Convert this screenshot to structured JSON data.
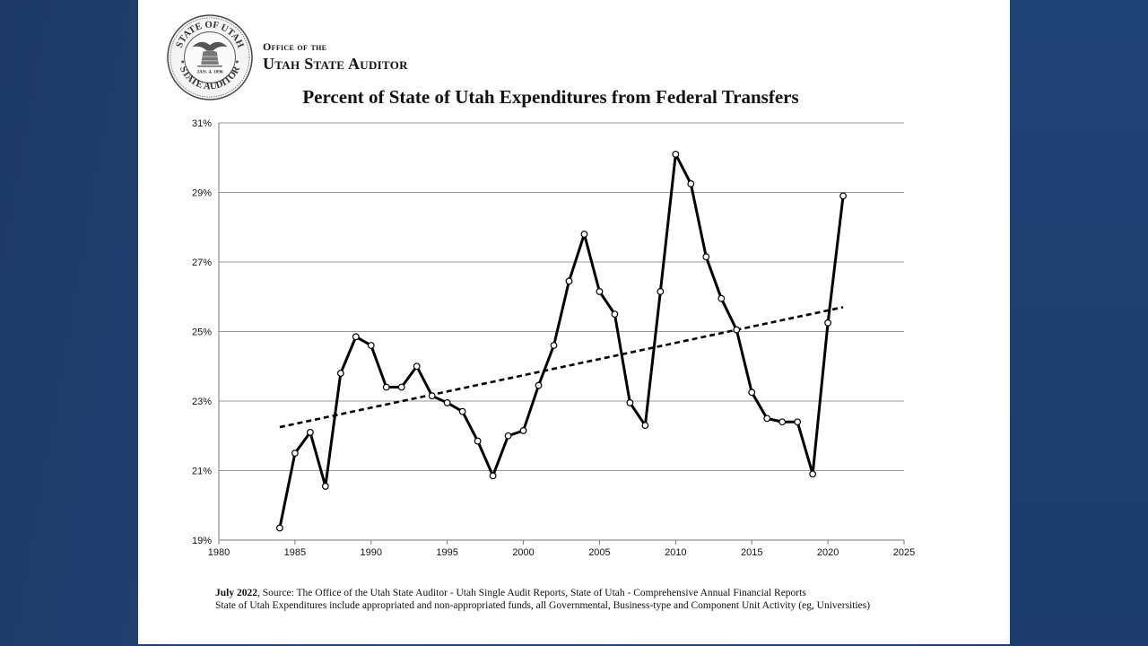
{
  "header": {
    "office_line1": "Office of the",
    "office_line2": "Utah State Auditor",
    "seal": {
      "text_top": "STATE OF UTAH",
      "text_bottom": "STATE AUDITOR",
      "date": "JAN. 4, 1896"
    }
  },
  "footnote": {
    "date": "July 2022",
    "source": ", Source: The Office of the Utah State Auditor - Utah Single Audit Reports, State of Utah - Comprehensive Annual Financial Reports",
    "note": "State of Utah Expenditures include appropriated and non-appropriated funds, all Governmental, Business-type and Component Unit Activity (eg, Universities)"
  },
  "colors": {
    "background": "#1f4173",
    "panel": "#ffffff",
    "line": "#000000",
    "grid": "#9a9a9a"
  },
  "chart_data": {
    "type": "line",
    "title": "Percent of State of Utah Expenditures from Federal Transfers",
    "xlabel": "",
    "ylabel": "",
    "xlim": [
      1980,
      2025
    ],
    "ylim": [
      19,
      31
    ],
    "x_ticks": [
      1980,
      1985,
      1990,
      1995,
      2000,
      2005,
      2010,
      2015,
      2020,
      2025
    ],
    "y_ticks": [
      19,
      21,
      23,
      25,
      27,
      29,
      31
    ],
    "y_tick_labels": [
      "19%",
      "21%",
      "23%",
      "25%",
      "27%",
      "29%",
      "31%"
    ],
    "grid": "horizontal",
    "series": [
      {
        "style": "solid-with-markers",
        "x": [
          1984,
          1985,
          1986,
          1987,
          1988,
          1989,
          1990,
          1991,
          1992,
          1993,
          1994,
          1995,
          1996,
          1997,
          1998,
          1999,
          2000,
          2001,
          2002,
          2003,
          2004,
          2005,
          2006,
          2007,
          2008,
          2009,
          2010,
          2011,
          2012,
          2013,
          2014,
          2015,
          2016,
          2017,
          2018,
          2019,
          2020,
          2021
        ],
        "values": [
          19.35,
          21.5,
          22.1,
          20.55,
          23.8,
          24.85,
          24.6,
          23.4,
          23.4,
          24.0,
          23.15,
          22.95,
          22.7,
          21.85,
          20.85,
          22.0,
          22.15,
          23.45,
          24.6,
          26.45,
          27.8,
          26.15,
          25.5,
          22.95,
          22.3,
          26.15,
          30.1,
          29.25,
          27.15,
          25.95,
          25.05,
          23.25,
          22.5,
          22.4,
          22.4,
          20.9,
          25.25,
          28.9
        ]
      },
      {
        "style": "dashed-trend",
        "x": [
          1984,
          2021
        ],
        "values": [
          22.25,
          25.7
        ]
      }
    ]
  }
}
